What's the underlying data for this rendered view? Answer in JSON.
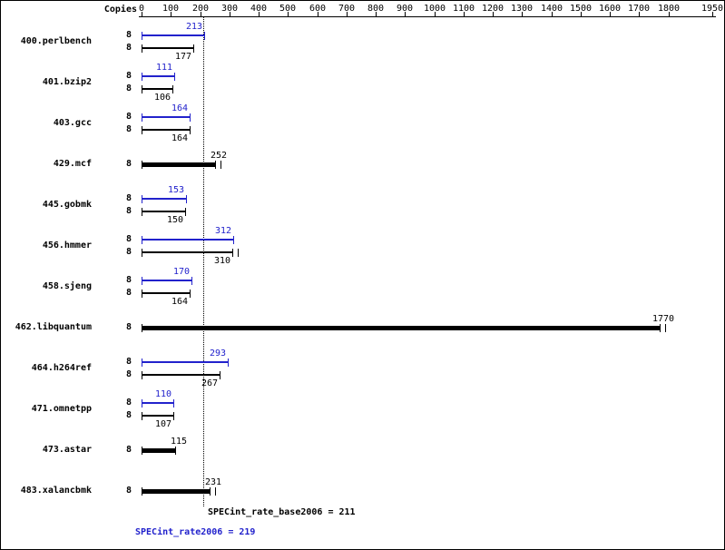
{
  "header": {
    "copies_label": "Copies"
  },
  "summary": {
    "base": "SPECint_rate_base2006 = 211",
    "peak": "SPECint_rate2006 = 219"
  },
  "colors": {
    "peak": "#2222cc",
    "base": "#000000"
  },
  "chart_data": {
    "type": "bar",
    "orientation": "horizontal",
    "title": "",
    "xlabel": "",
    "ylabel": "Copies",
    "x_axis": {
      "min": 0,
      "max": 1950,
      "tick_labels": [
        0,
        100,
        200,
        300,
        400,
        500,
        600,
        700,
        800,
        900,
        1000,
        1100,
        1200,
        1300,
        1400,
        1500,
        1600,
        1700,
        1800,
        1950
      ]
    },
    "reference_line": {
      "value": 211,
      "style": "dotted"
    },
    "series_meta": {
      "peak": "SPECint_rate2006",
      "base": "SPECint_rate_base2006"
    },
    "benchmarks": [
      {
        "name": "400.perlbench",
        "rows": [
          {
            "series": "peak",
            "copies": 8,
            "value": 213
          },
          {
            "series": "base",
            "copies": 8,
            "value": 177
          }
        ]
      },
      {
        "name": "401.bzip2",
        "rows": [
          {
            "series": "peak",
            "copies": 8,
            "value": 111
          },
          {
            "series": "base",
            "copies": 8,
            "value": 106
          }
        ]
      },
      {
        "name": "403.gcc",
        "rows": [
          {
            "series": "peak",
            "copies": 8,
            "value": 164
          },
          {
            "series": "base",
            "copies": 8,
            "value": 164
          }
        ]
      },
      {
        "name": "429.mcf",
        "rows": [
          {
            "series": "base",
            "copies": 8,
            "value": 252,
            "bold": true,
            "double_tick": true
          }
        ]
      },
      {
        "name": "445.gobmk",
        "rows": [
          {
            "series": "peak",
            "copies": 8,
            "value": 153
          },
          {
            "series": "base",
            "copies": 8,
            "value": 150
          }
        ]
      },
      {
        "name": "456.hmmer",
        "rows": [
          {
            "series": "peak",
            "copies": 8,
            "value": 312
          },
          {
            "series": "base",
            "copies": 8,
            "value": 310,
            "double_tick": true
          }
        ]
      },
      {
        "name": "458.sjeng",
        "rows": [
          {
            "series": "peak",
            "copies": 8,
            "value": 170
          },
          {
            "series": "base",
            "copies": 8,
            "value": 164
          }
        ]
      },
      {
        "name": "462.libquantum",
        "rows": [
          {
            "series": "base",
            "copies": 8,
            "value": 1770,
            "bold": true,
            "double_tick": true
          }
        ]
      },
      {
        "name": "464.h264ref",
        "rows": [
          {
            "series": "peak",
            "copies": 8,
            "value": 293
          },
          {
            "series": "base",
            "copies": 8,
            "value": 267
          }
        ]
      },
      {
        "name": "471.omnetpp",
        "rows": [
          {
            "series": "peak",
            "copies": 8,
            "value": 110
          },
          {
            "series": "base",
            "copies": 8,
            "value": 107
          }
        ]
      },
      {
        "name": "473.astar",
        "rows": [
          {
            "series": "base",
            "copies": 8,
            "value": 115,
            "bold": true
          }
        ]
      },
      {
        "name": "483.xalancbmk",
        "rows": [
          {
            "series": "base",
            "copies": 8,
            "value": 231,
            "bold": true,
            "double_tick": true
          }
        ]
      }
    ]
  }
}
